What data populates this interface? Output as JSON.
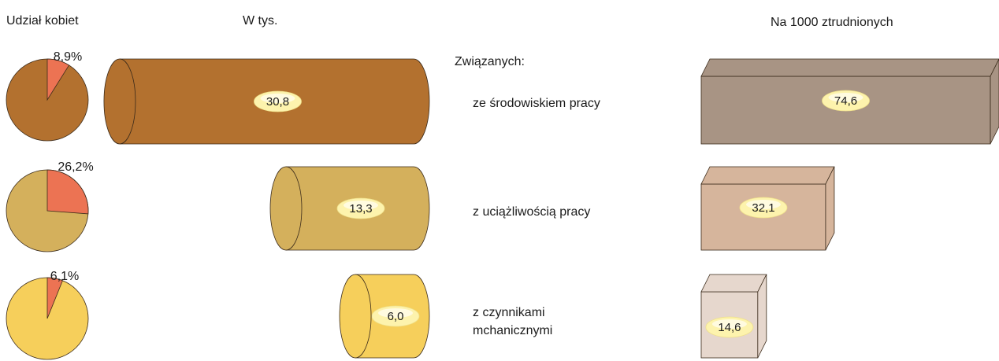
{
  "chart_data": [
    {
      "type": "pie",
      "title": "Udział kobiet",
      "values": [
        8.9,
        26.2,
        6.1
      ],
      "value_labels": [
        "8,9%",
        "26,2%",
        "6,1%"
      ],
      "colors": [
        "#b3712f",
        "#d4b05c",
        "#f6cf5b"
      ],
      "slice_color": "#ec7353"
    },
    {
      "type": "cylinder",
      "title": "W tys.",
      "category_title": "Związanych:",
      "categories": [
        "ze środowiskiem pracy",
        "z uciążliwością pracy",
        "z czynnikami\nmchanicznymi"
      ],
      "values": [
        30.8,
        13.3,
        6.0
      ],
      "value_labels": [
        "30,8",
        "13,3",
        "6,0"
      ],
      "colors": [
        "#b3712f",
        "#d4b05c",
        "#f6cf5b"
      ]
    },
    {
      "type": "box",
      "title": "Na 1000 ztrudnionych",
      "values": [
        74.6,
        32.1,
        14.6
      ],
      "value_labels": [
        "74,6",
        "32,1",
        "14,6"
      ],
      "colors": [
        "#a89484",
        "#d6b59c",
        "#e6d7cd"
      ]
    }
  ]
}
